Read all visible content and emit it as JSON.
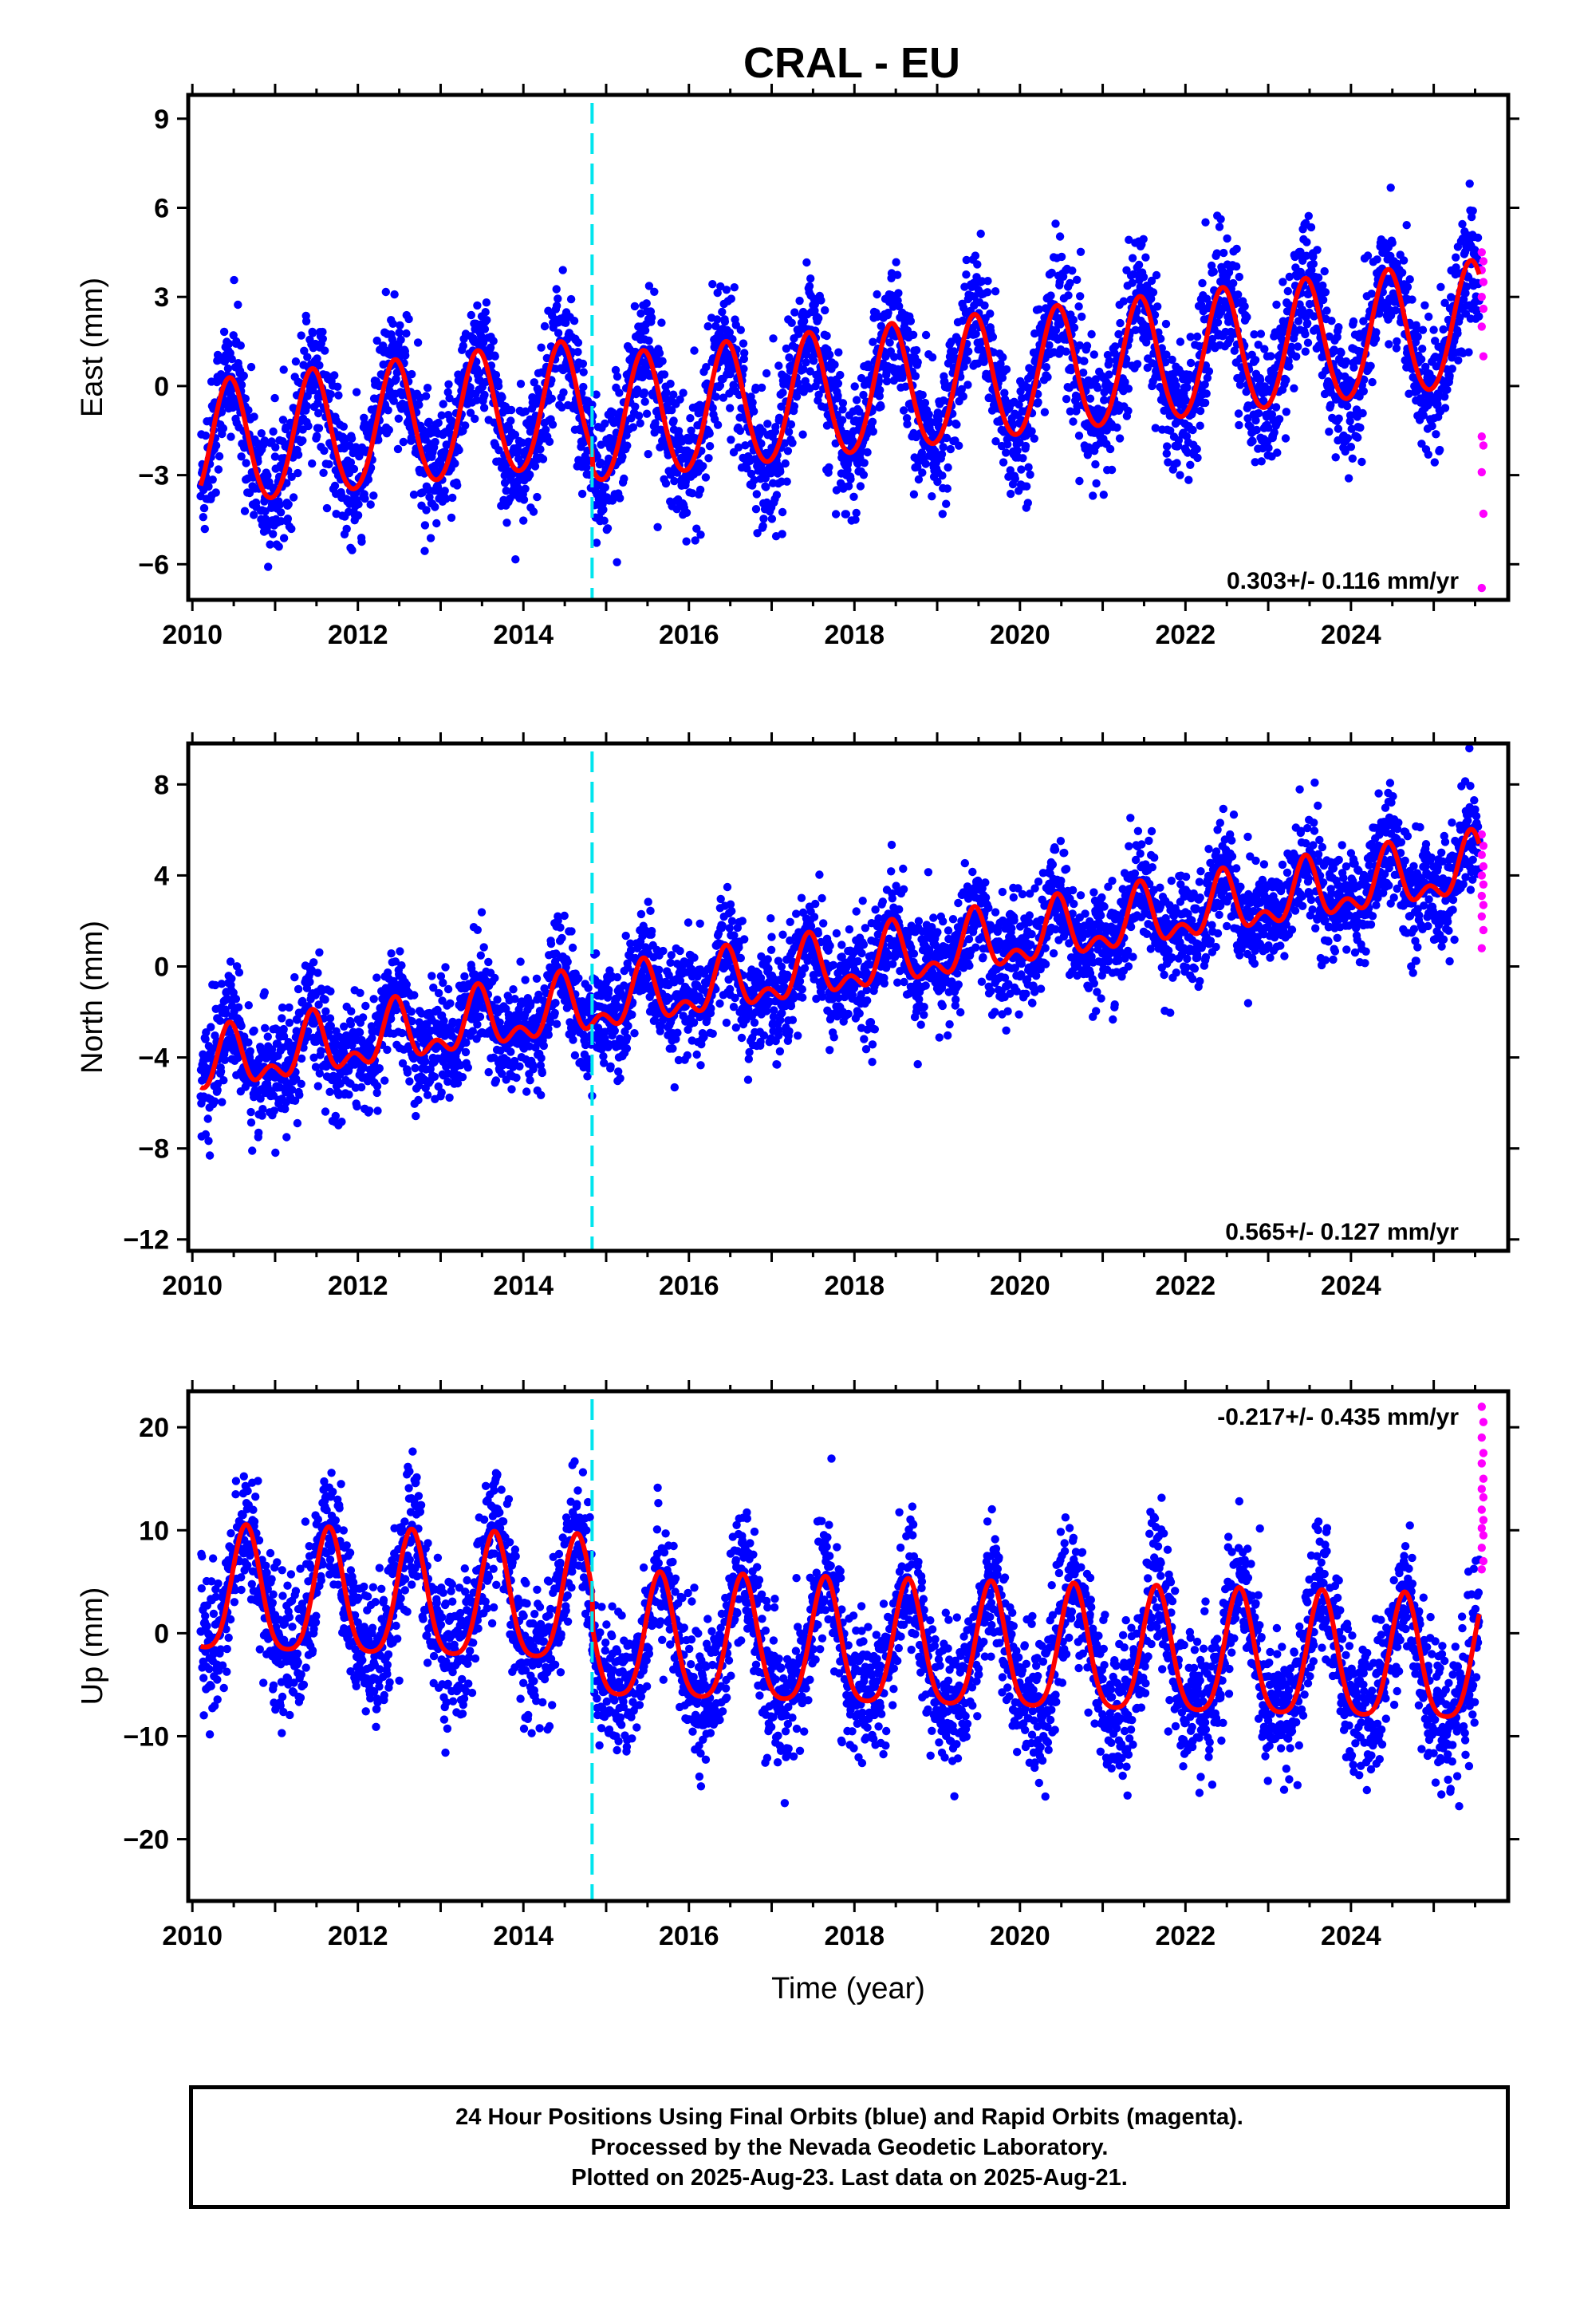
{
  "title": "CRAL - EU",
  "colors": {
    "final_orbits": "#0000ff",
    "rapid_orbits": "#ff00ff",
    "model_fit": "#ff0000",
    "equipment_change": "#00e5ee",
    "frame": "#000000"
  },
  "footer": {
    "line1": "24 Hour Positions Using Final Orbits (blue) and Rapid Orbits (magenta).",
    "line2": "Processed by the Nevada Geodetic Laboratory.",
    "line3": "Plotted on 2025-Aug-23. Last data on 2025-Aug-21."
  },
  "chart_data": [
    {
      "type": "scatter",
      "component": "east",
      "ylabel": "East (mm)",
      "xlabel": "",
      "xlim": [
        2009.95,
        2025.9
      ],
      "ylim": [
        -7.2,
        9.8
      ],
      "xticks": [
        2010,
        2012,
        2014,
        2016,
        2018,
        2020,
        2022,
        2024
      ],
      "xtick_labels": [
        "2010",
        "2012",
        "2014",
        "2016",
        "2018",
        "2020",
        "2022",
        "2024"
      ],
      "yticks": [
        -6,
        -3,
        0,
        3,
        6,
        9
      ],
      "ytick_labels": [
        "−6",
        "−3",
        "0",
        "3",
        "6",
        "9"
      ],
      "rate_label": "0.303+/- 0.116 mm/yr",
      "rate_position": "bottom-right",
      "equipment_change_year": 2014.83,
      "data_start": 2010.1,
      "data_end": 2025.55,
      "model": {
        "offset": -2.1,
        "rate": 0.303,
        "annual_amplitude": 2.1,
        "annual_phase_peak": 0.45,
        "semiannual_amplitude": 0.15,
        "step_at_change": -0.6
      },
      "scatter_noise": 1.3,
      "series": [
        {
          "name": "Final Orbits",
          "color": "#0000ff",
          "note": "daily positions 2010.1–2025.55"
        },
        {
          "name": "Rapid Orbits",
          "color": "#ff00ff",
          "values": [
            4.5,
            4.2,
            3.9,
            3.5,
            3.0,
            2.6,
            2.0,
            1.0,
            -1.7,
            -2.0,
            -2.9,
            -4.3,
            -6.8
          ]
        }
      ]
    },
    {
      "type": "scatter",
      "component": "north",
      "ylabel": "North (mm)",
      "xlabel": "",
      "xlim": [
        2009.95,
        2025.9
      ],
      "ylim": [
        -12.5,
        9.8
      ],
      "xticks": [
        2010,
        2012,
        2014,
        2016,
        2018,
        2020,
        2022,
        2024
      ],
      "xtick_labels": [
        "2010",
        "2012",
        "2014",
        "2016",
        "2018",
        "2020",
        "2022",
        "2024"
      ],
      "yticks": [
        -12,
        -8,
        -4,
        0,
        4,
        8
      ],
      "ytick_labels": [
        "−12",
        "−8",
        "−4",
        "0",
        "4",
        "8"
      ],
      "rate_label": "0.565+/- 0.127 mm/yr",
      "rate_position": "bottom-right",
      "equipment_change_year": 2014.83,
      "data_start": 2010.1,
      "data_end": 2025.55,
      "model": {
        "offset": -4.5,
        "rate": 0.565,
        "annual_amplitude": 1.1,
        "annual_phase_peak": 0.45,
        "semiannual_amplitude": 0.7,
        "step_at_change": 0.0
      },
      "scatter_noise": 1.4,
      "series": [
        {
          "name": "Final Orbits",
          "color": "#0000ff",
          "note": "daily positions 2010.1–2025.55"
        },
        {
          "name": "Rapid Orbits",
          "color": "#ff00ff",
          "values": [
            5.8,
            5.3,
            4.9,
            4.4,
            4.0,
            3.6,
            3.1,
            2.7,
            2.2,
            1.6,
            0.8
          ]
        }
      ]
    },
    {
      "type": "scatter",
      "component": "up",
      "ylabel": "Up (mm)",
      "xlabel": "Time (year)",
      "xlim": [
        2009.95,
        2025.9
      ],
      "ylim": [
        -26,
        23.5
      ],
      "xticks": [
        2010,
        2012,
        2014,
        2016,
        2018,
        2020,
        2022,
        2024
      ],
      "xtick_labels": [
        "2010",
        "2012",
        "2014",
        "2016",
        "2018",
        "2020",
        "2022",
        "2024"
      ],
      "yticks": [
        -20,
        -10,
        0,
        10,
        20
      ],
      "ytick_labels": [
        "−20",
        "−10",
        "0",
        "10",
        "20"
      ],
      "rate_label": "-0.217+/- 0.435 mm/yr",
      "rate_position": "top-right",
      "equipment_change_year": 2014.83,
      "data_start": 2010.1,
      "data_end": 2025.55,
      "model": {
        "offset": 3.5,
        "rate": -0.217,
        "annual_amplitude": 6.0,
        "annual_phase_peak": 0.65,
        "semiannual_amplitude": 1.2,
        "step_at_change": -3.5
      },
      "scatter_noise": 3.8,
      "series": [
        {
          "name": "Final Orbits",
          "color": "#0000ff",
          "note": "daily positions 2010.1–2025.55"
        },
        {
          "name": "Rapid Orbits",
          "color": "#ff00ff",
          "values": [
            22.0,
            20.5,
            19.0,
            17.5,
            16.5,
            15.0,
            14.0,
            13.2,
            12.0,
            11.0,
            10.2,
            9.5,
            8.3,
            7.0,
            6.2
          ]
        }
      ]
    }
  ]
}
